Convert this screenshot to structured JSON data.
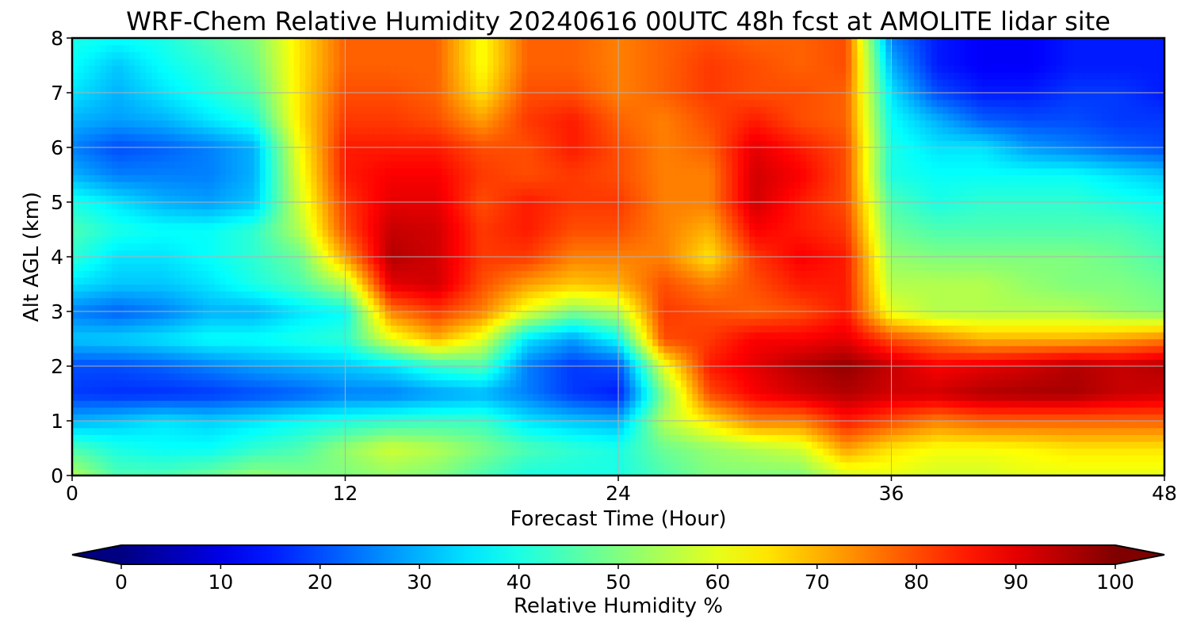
{
  "chart_data": {
    "type": "heatmap",
    "title": "WRF-Chem Relative Humidity 20240616 00UTC 48h fcst at AMOLITE lidar site",
    "xlabel": "Forecast Time (Hour)",
    "ylabel": "Alt AGL (km)",
    "xlim": [
      0,
      48
    ],
    "ylim": [
      0,
      8
    ],
    "xticks": [
      0,
      12,
      24,
      36,
      48
    ],
    "yticks": [
      0,
      1,
      2,
      3,
      4,
      5,
      6,
      7,
      8
    ],
    "grid": true,
    "colormap": "jet",
    "colorbar": {
      "label": "Relative Humidity %",
      "range": [
        0,
        100
      ],
      "ticks": [
        0,
        10,
        20,
        30,
        40,
        50,
        60,
        70,
        80,
        90,
        100
      ],
      "orientation": "horizontal",
      "extend": "both"
    },
    "x": [
      0,
      2,
      4,
      6,
      8,
      10,
      12,
      14,
      16,
      18,
      20,
      22,
      24,
      26,
      28,
      30,
      32,
      34,
      36,
      38,
      40,
      42,
      44,
      46,
      48
    ],
    "y": [
      0,
      0.5,
      1,
      1.5,
      2,
      2.5,
      3,
      3.5,
      4,
      4.5,
      5,
      5.5,
      6,
      6.5,
      7,
      7.5,
      8
    ],
    "z": [
      [
        55,
        45,
        45,
        48,
        52,
        50,
        50,
        52,
        50,
        45,
        40,
        40,
        40,
        45,
        50,
        50,
        50,
        58,
        60,
        58,
        58,
        60,
        60,
        60,
        60
      ],
      [
        45,
        40,
        38,
        38,
        42,
        45,
        52,
        58,
        55,
        50,
        45,
        42,
        40,
        48,
        52,
        55,
        58,
        72,
        65,
        62,
        62,
        63,
        65,
        65,
        65
      ],
      [
        30,
        32,
        35,
        33,
        35,
        38,
        40,
        42,
        43,
        43,
        35,
        32,
        30,
        55,
        65,
        75,
        75,
        85,
        80,
        75,
        78,
        78,
        78,
        78,
        78
      ],
      [
        18,
        17,
        17,
        18,
        20,
        22,
        25,
        25,
        28,
        30,
        25,
        18,
        15,
        50,
        80,
        88,
        92,
        95,
        92,
        92,
        95,
        96,
        96,
        93,
        92
      ],
      [
        20,
        20,
        22,
        25,
        28,
        30,
        32,
        35,
        42,
        45,
        25,
        18,
        20,
        60,
        85,
        90,
        95,
        98,
        93,
        88,
        90,
        92,
        95,
        93,
        95
      ],
      [
        32,
        33,
        35,
        38,
        38,
        40,
        42,
        60,
        70,
        60,
        35,
        28,
        38,
        80,
        82,
        88,
        88,
        90,
        80,
        75,
        70,
        70,
        70,
        72,
        75
      ],
      [
        25,
        22,
        25,
        30,
        30,
        35,
        38,
        75,
        82,
        75,
        60,
        50,
        55,
        82,
        80,
        78,
        80,
        85,
        60,
        55,
        55,
        55,
        55,
        52,
        50
      ],
      [
        35,
        32,
        32,
        35,
        40,
        45,
        55,
        90,
        92,
        80,
        72,
        68,
        70,
        80,
        75,
        80,
        85,
        85,
        55,
        55,
        55,
        52,
        50,
        50,
        48
      ],
      [
        42,
        35,
        35,
        38,
        42,
        48,
        72,
        95,
        92,
        82,
        82,
        75,
        75,
        75,
        65,
        82,
        88,
        85,
        52,
        50,
        50,
        50,
        50,
        48,
        45
      ],
      [
        45,
        40,
        38,
        38,
        42,
        55,
        80,
        93,
        92,
        82,
        85,
        80,
        80,
        75,
        70,
        88,
        85,
        82,
        48,
        45,
        45,
        45,
        45,
        45,
        42
      ],
      [
        40,
        35,
        30,
        28,
        32,
        58,
        82,
        90,
        90,
        80,
        85,
        82,
        82,
        75,
        75,
        92,
        85,
        80,
        45,
        40,
        42,
        42,
        42,
        40,
        38
      ],
      [
        30,
        25,
        25,
        25,
        30,
        60,
        85,
        88,
        88,
        82,
        80,
        82,
        80,
        75,
        75,
        92,
        88,
        80,
        40,
        38,
        38,
        38,
        38,
        35,
        32
      ],
      [
        25,
        20,
        22,
        25,
        30,
        62,
        85,
        85,
        85,
        80,
        80,
        85,
        80,
        75,
        78,
        90,
        85,
        80,
        40,
        35,
        35,
        28,
        25,
        22,
        20
      ],
      [
        30,
        28,
        30,
        35,
        40,
        65,
        82,
        82,
        80,
        72,
        82,
        85,
        78,
        75,
        80,
        85,
        80,
        78,
        38,
        30,
        22,
        20,
        20,
        18,
        18
      ],
      [
        35,
        30,
        35,
        40,
        45,
        65,
        80,
        80,
        78,
        65,
        80,
        80,
        75,
        78,
        82,
        80,
        80,
        78,
        35,
        20,
        15,
        15,
        18,
        18,
        15
      ],
      [
        38,
        32,
        38,
        42,
        48,
        65,
        78,
        78,
        78,
        62,
        78,
        78,
        75,
        78,
        82,
        80,
        78,
        80,
        30,
        15,
        12,
        12,
        15,
        15,
        15
      ],
      [
        40,
        38,
        40,
        45,
        50,
        65,
        78,
        78,
        78,
        62,
        78,
        78,
        75,
        78,
        80,
        78,
        78,
        80,
        25,
        15,
        12,
        12,
        15,
        15,
        15
      ]
    ]
  }
}
